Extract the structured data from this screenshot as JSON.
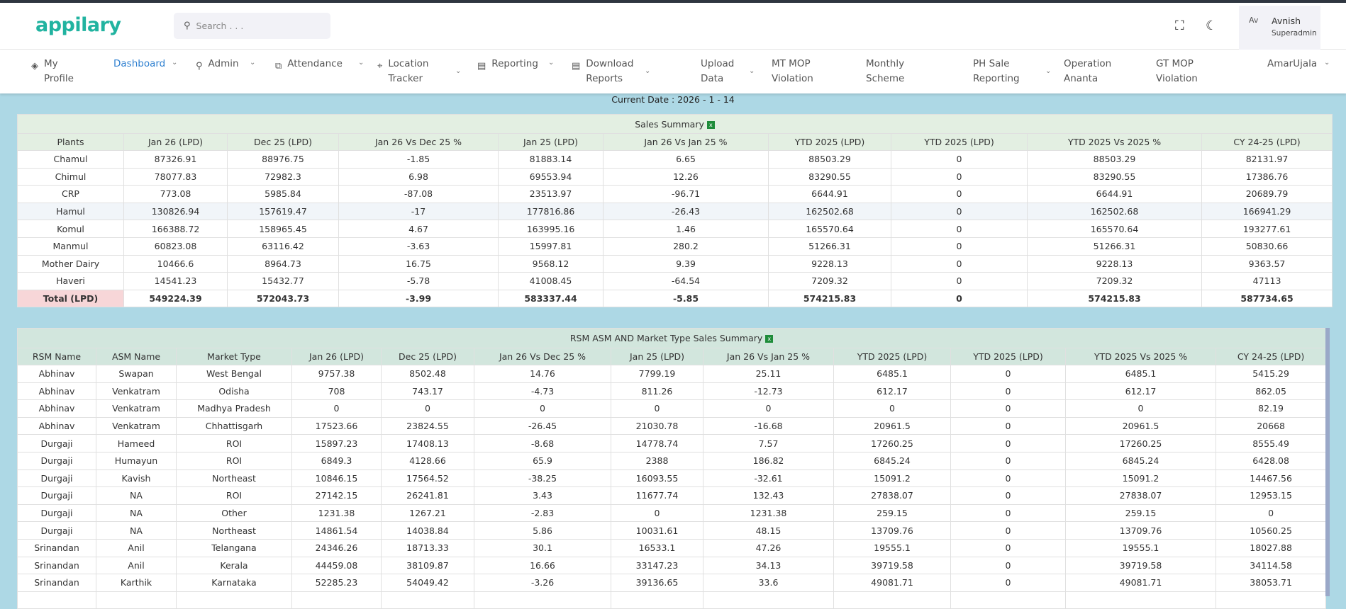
{
  "header": {
    "logo": "appilary",
    "search_placeholder": "Search . . .",
    "user_name": "Avnish",
    "user_role": "Superadmin",
    "avatar_alt": "Av",
    "icons": {
      "fullscreen": "fullscreen-icon",
      "theme": "moon-icon"
    }
  },
  "nav": [
    {
      "label": "My",
      "label2": "Profile",
      "icon": "◈",
      "chev": false
    },
    {
      "label": "Dashboard",
      "label2": "",
      "icon": "",
      "chev": true,
      "active": true
    },
    {
      "label": "Admin",
      "label2": "",
      "icon": "⚲",
      "chev": true
    },
    {
      "label": "Attendance",
      "label2": "",
      "icon": "⧉",
      "chev": true
    },
    {
      "label": "Location",
      "label2": "Tracker",
      "icon": "⌖",
      "chev": true
    },
    {
      "label": "Reporting",
      "label2": "",
      "icon": "▤",
      "chev": true
    },
    {
      "label": "Download",
      "label2": "Reports",
      "icon": "▤",
      "chev": true
    },
    {
      "label": "Upload",
      "label2": "Data",
      "icon": "",
      "chev": true
    },
    {
      "label": "MT MOP",
      "label2": "Violation",
      "icon": "",
      "chev": false
    },
    {
      "label": "Monthly",
      "label2": "Scheme",
      "icon": "",
      "chev": false
    },
    {
      "label": "PH Sale",
      "label2": "Reporting",
      "icon": "",
      "chev": true
    },
    {
      "label": "Operation",
      "label2": "Ananta",
      "icon": "",
      "chev": false
    },
    {
      "label": "GT MOP",
      "label2": "Violation",
      "icon": "",
      "chev": false
    },
    {
      "label": "AmarUjala",
      "label2": "",
      "icon": "",
      "chev": true
    }
  ],
  "current_date": "Current Date : 2026 - 1 - 14",
  "sales_summary": {
    "title": "Sales Summary",
    "columns": [
      "Plants",
      "Jan 26 (LPD)",
      "Dec 25 (LPD)",
      "Jan 26 Vs Dec 25 %",
      "Jan 25 (LPD)",
      "Jan 26 Vs Jan 25 %",
      "YTD 2025 (LPD)",
      "YTD 2025 (LPD)",
      "YTD 2025 Vs 2025 %",
      "CY 24-25 (LPD)"
    ],
    "rows": [
      [
        "Chamul",
        "87326.91",
        "88976.75",
        "-1.85",
        "81883.14",
        "6.65",
        "88503.29",
        "0",
        "88503.29",
        "82131.97"
      ],
      [
        "Chimul",
        "78077.83",
        "72982.3",
        "6.98",
        "69553.94",
        "12.26",
        "83290.55",
        "0",
        "83290.55",
        "17386.76"
      ],
      [
        "CRP",
        "773.08",
        "5985.84",
        "-87.08",
        "23513.97",
        "-96.71",
        "6644.91",
        "0",
        "6644.91",
        "20689.79"
      ],
      [
        "Hamul",
        "130826.94",
        "157619.47",
        "-17",
        "177816.86",
        "-26.43",
        "162502.68",
        "0",
        "162502.68",
        "166941.29"
      ],
      [
        "Komul",
        "166388.72",
        "158965.45",
        "4.67",
        "163995.16",
        "1.46",
        "165570.64",
        "0",
        "165570.64",
        "193277.61"
      ],
      [
        "Manmul",
        "60823.08",
        "63116.42",
        "-3.63",
        "15997.81",
        "280.2",
        "51266.31",
        "0",
        "51266.31",
        "50830.66"
      ],
      [
        "Mother Dairy",
        "10466.6",
        "8964.73",
        "16.75",
        "9568.12",
        "9.39",
        "9228.13",
        "0",
        "9228.13",
        "9363.57"
      ],
      [
        "Haveri",
        "14541.23",
        "15432.77",
        "-5.78",
        "41008.45",
        "-64.54",
        "7209.32",
        "0",
        "7209.32",
        "47113"
      ]
    ],
    "total": [
      "Total (LPD)",
      "549224.39",
      "572043.73",
      "-3.99",
      "583337.44",
      "-5.85",
      "574215.83",
      "0",
      "574215.83",
      "587734.65"
    ]
  },
  "market_summary": {
    "title": "RSM ASM AND Market Type Sales Summary",
    "columns": [
      "RSM Name",
      "ASM Name",
      "Market Type",
      "Jan 26 (LPD)",
      "Dec 25 (LPD)",
      "Jan 26 Vs Dec 25 %",
      "Jan 25 (LPD)",
      "Jan 26 Vs Jan 25 %",
      "YTD 2025 (LPD)",
      "YTD 2025 (LPD)",
      "YTD 2025 Vs 2025 %",
      "CY 24-25 (LPD)"
    ],
    "rows": [
      [
        "Abhinav",
        "Swapan",
        "West Bengal",
        "9757.38",
        "8502.48",
        "14.76",
        "7799.19",
        "25.11",
        "6485.1",
        "0",
        "6485.1",
        "5415.29"
      ],
      [
        "Abhinav",
        "Venkatram",
        "Odisha",
        "708",
        "743.17",
        "-4.73",
        "811.26",
        "-12.73",
        "612.17",
        "0",
        "612.17",
        "862.05"
      ],
      [
        "Abhinav",
        "Venkatram",
        "Madhya Pradesh",
        "0",
        "0",
        "0",
        "0",
        "0",
        "0",
        "0",
        "0",
        "82.19"
      ],
      [
        "Abhinav",
        "Venkatram",
        "Chhattisgarh",
        "17523.66",
        "23824.55",
        "-26.45",
        "21030.78",
        "-16.68",
        "20961.5",
        "0",
        "20961.5",
        "20668"
      ],
      [
        "Durgaji",
        "Hameed",
        "ROI",
        "15897.23",
        "17408.13",
        "-8.68",
        "14778.74",
        "7.57",
        "17260.25",
        "0",
        "17260.25",
        "8555.49"
      ],
      [
        "Durgaji",
        "Humayun",
        "ROI",
        "6849.3",
        "4128.66",
        "65.9",
        "2388",
        "186.82",
        "6845.24",
        "0",
        "6845.24",
        "6428.08"
      ],
      [
        "Durgaji",
        "Kavish",
        "Northeast",
        "10846.15",
        "17564.52",
        "-38.25",
        "16093.55",
        "-32.61",
        "15091.2",
        "0",
        "15091.2",
        "14467.56"
      ],
      [
        "Durgaji",
        "NA",
        "ROI",
        "27142.15",
        "26241.81",
        "3.43",
        "11677.74",
        "132.43",
        "27838.07",
        "0",
        "27838.07",
        "12953.15"
      ],
      [
        "Durgaji",
        "NA",
        "Other",
        "1231.38",
        "1267.21",
        "-2.83",
        "0",
        "1231.38",
        "259.15",
        "0",
        "259.15",
        "0"
      ],
      [
        "Durgaji",
        "NA",
        "Northeast",
        "14861.54",
        "14038.84",
        "5.86",
        "10031.61",
        "48.15",
        "13709.76",
        "0",
        "13709.76",
        "10560.25"
      ],
      [
        "Srinandan",
        "Anil",
        "Telangana",
        "24346.26",
        "18713.33",
        "30.1",
        "16533.1",
        "47.26",
        "19555.1",
        "0",
        "19555.1",
        "18027.88"
      ],
      [
        "Srinandan",
        "Anil",
        "Kerala",
        "44459.08",
        "38109.87",
        "16.66",
        "33147.23",
        "34.13",
        "39719.58",
        "0",
        "39719.58",
        "34114.58"
      ],
      [
        "Srinandan",
        "Karthik",
        "Karnataka",
        "52285.23",
        "54049.42",
        "-3.26",
        "39136.65",
        "33.6",
        "49081.71",
        "0",
        "49081.71",
        "38053.71"
      ],
      [
        "",
        "",
        "",
        "",
        "",
        "",
        "",
        "",
        "",
        "",
        "",
        ""
      ]
    ]
  }
}
